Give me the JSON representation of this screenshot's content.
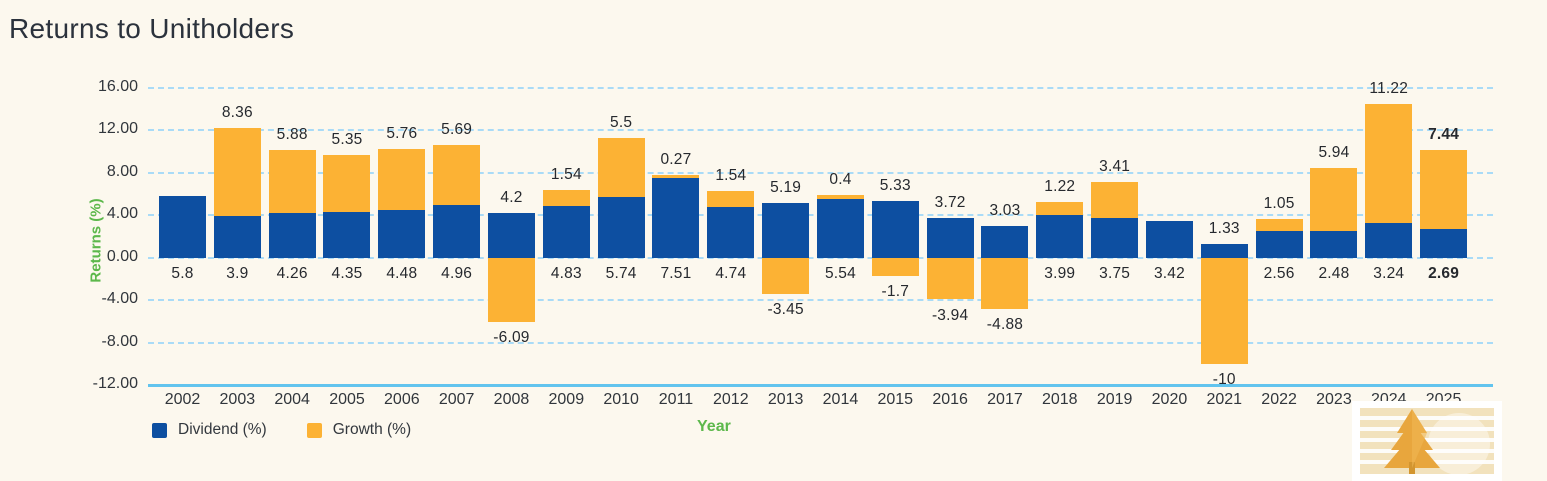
{
  "title": "Returns to Unitholders",
  "chart_data": {
    "type": "bar",
    "stacked": true,
    "title": "Returns to Unitholders",
    "xlabel": "Year",
    "ylabel": "Returns (%)",
    "ylim": [
      -12,
      16
    ],
    "ytick_values": [
      16,
      12,
      8,
      4,
      0,
      -4,
      -8,
      -12
    ],
    "ytick_labels": [
      "16.00",
      "12.00",
      "8.00",
      "4.00",
      "0.00",
      "-4.00",
      "-8.00",
      "-12.00"
    ],
    "grid": "horizontal-dashed",
    "legend_position": "bottom-left",
    "categories": [
      "2002",
      "2003",
      "2004",
      "2005",
      "2006",
      "2007",
      "2008",
      "2009",
      "2010",
      "2011",
      "2012",
      "2013",
      "2014",
      "2015",
      "2016",
      "2017",
      "2018",
      "2019",
      "2020",
      "2021",
      "2022",
      "2023",
      "2024",
      "2025"
    ],
    "series": [
      {
        "name": "Dividend (%)",
        "color": "#0d4fa1",
        "values": [
          5.8,
          3.9,
          4.26,
          4.35,
          4.48,
          4.96,
          4.2,
          4.83,
          5.74,
          7.51,
          4.74,
          5.19,
          5.54,
          5.33,
          3.72,
          3.03,
          3.99,
          3.75,
          3.42,
          1.33,
          2.56,
          2.48,
          3.24,
          2.69
        ]
      },
      {
        "name": "Growth (%)",
        "color": "#fcb234",
        "values": [
          null,
          8.36,
          5.88,
          5.35,
          5.76,
          5.69,
          -6.09,
          1.54,
          5.5,
          0.27,
          1.54,
          -3.45,
          0.4,
          -1.7,
          -3.94,
          -4.88,
          1.22,
          3.41,
          null,
          -10,
          1.05,
          5.94,
          11.22,
          7.44
        ]
      }
    ],
    "bold_category": "2025"
  },
  "legend": {
    "items": [
      {
        "label": "Dividend (%)",
        "color": "#0d4fa1"
      },
      {
        "label": "Growth (%)",
        "color": "#fcb234"
      }
    ]
  },
  "colors": {
    "background": "#fcf8ee",
    "dividend": "#0d4fa1",
    "growth": "#fcb234",
    "grid_dash": "#a9dbf7",
    "axis_line": "#62c4ee",
    "green_label": "#5cb84b",
    "title_text": "#2b323c",
    "label_text": "#26292e"
  },
  "logo": {
    "name": "striped-tree-logo"
  }
}
